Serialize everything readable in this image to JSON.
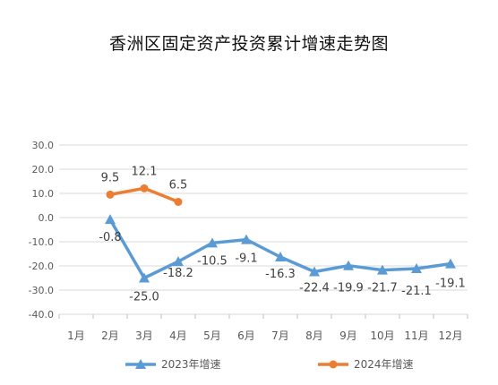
{
  "chart_data": {
    "type": "line",
    "title": "香洲区固定资产投资累计增速走势图",
    "xlabel": "",
    "ylabel": "",
    "categories": [
      "1月",
      "2月",
      "3月",
      "4月",
      "5月",
      "6月",
      "7月",
      "8月",
      "9月",
      "10月",
      "11月",
      "12月"
    ],
    "ylim": [
      -40,
      30
    ],
    "yticks": [
      "30.0",
      "20.0",
      "10.0",
      "0.0",
      "-10.0",
      "-20.0",
      "-30.0",
      "-40.0"
    ],
    "ytick_values": [
      30,
      20,
      10,
      0,
      -10,
      -20,
      -30,
      -40
    ],
    "grid": true,
    "legend_position": "bottom",
    "series": [
      {
        "name": "2023年增速",
        "color": "#5B9BD5",
        "marker": "triangle",
        "values": [
          null,
          -0.8,
          -25.0,
          -18.2,
          -10.5,
          -9.1,
          -16.3,
          -22.4,
          -19.9,
          -21.7,
          -21.1,
          -19.1
        ],
        "labels": [
          null,
          "-0.8",
          "-25.0",
          "-18.2",
          "-10.5",
          "-9.1",
          "-16.3",
          "-22.4",
          "-19.9",
          "-21.7",
          "-21.1",
          "-19.1"
        ]
      },
      {
        "name": "2024年增速",
        "color": "#ED7D31",
        "marker": "circle",
        "values": [
          null,
          9.5,
          12.1,
          6.5,
          null,
          null,
          null,
          null,
          null,
          null,
          null,
          null
        ],
        "labels": [
          null,
          "9.5",
          "12.1",
          "6.5",
          null,
          null,
          null,
          null,
          null,
          null,
          null,
          null
        ]
      }
    ]
  }
}
